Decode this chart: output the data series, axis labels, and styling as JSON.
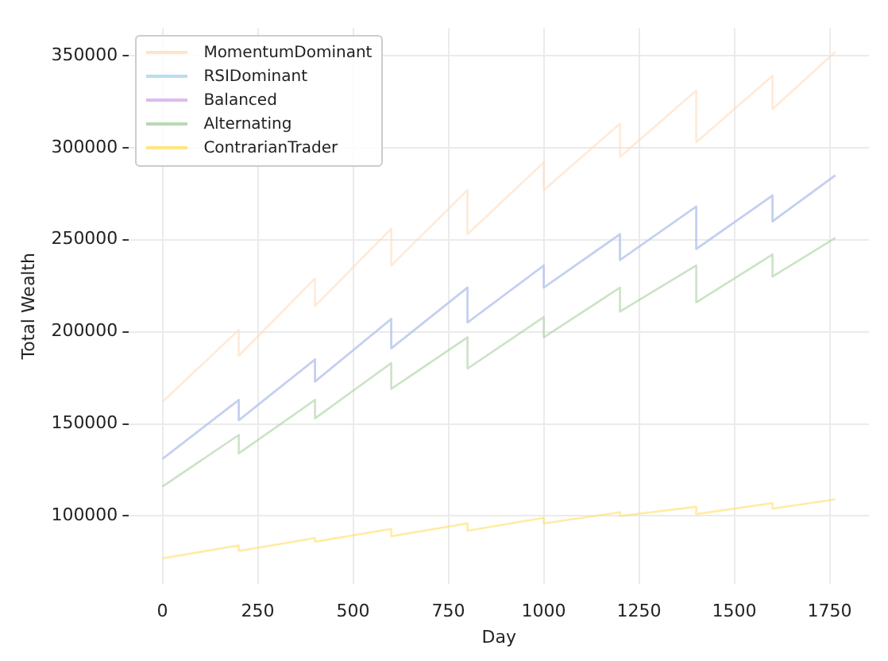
{
  "chart_data": {
    "type": "line",
    "xlabel": "Day",
    "ylabel": "Total Wealth",
    "xlim": [
      -88,
      1853
    ],
    "ylim": [
      63000,
      365000
    ],
    "xticks": [
      0,
      250,
      500,
      750,
      1000,
      1250,
      1500,
      1750
    ],
    "yticks": [
      100000,
      150000,
      200000,
      250000,
      300000,
      350000
    ],
    "grid": true,
    "legend": "top left",
    "marker": "none",
    "line_style": "solid",
    "x": [
      0,
      200,
      200,
      400,
      400,
      600,
      600,
      800,
      800,
      1000,
      1000,
      1200,
      1200,
      1400,
      1400,
      1600,
      1600,
      1765
    ],
    "series": [
      {
        "name": "MomentumDominant",
        "color": "#ffdcbc",
        "values": [
          162000,
          201000,
          187000,
          229000,
          214000,
          256000,
          236000,
          277000,
          253000,
          292000,
          277000,
          313000,
          295000,
          331000,
          303000,
          339000,
          321000,
          352000
        ]
      },
      {
        "name": "RSIDominant",
        "color": "#a8d4f0",
        "values": [
          131000,
          163000,
          152000,
          185000,
          173000,
          207000,
          191000,
          224000,
          205000,
          236000,
          224000,
          253000,
          239000,
          268000,
          245000,
          274000,
          260000,
          285000
        ]
      },
      {
        "name": "Balanced",
        "color": "#d8a8e8",
        "values": [
          131000,
          163000,
          152000,
          185000,
          173000,
          207000,
          191000,
          224000,
          205000,
          236000,
          224000,
          253000,
          239000,
          268000,
          245000,
          274000,
          260000,
          285000
        ]
      },
      {
        "name": "Alternating",
        "color": "#a8d0a0",
        "values": [
          116000,
          144000,
          134000,
          163000,
          153000,
          183000,
          169000,
          197000,
          180000,
          208000,
          197000,
          224000,
          211000,
          236000,
          216000,
          242000,
          230000,
          251000
        ]
      },
      {
        "name": "ContrarianTrader",
        "color": "#ffe066",
        "values": [
          77000,
          84000,
          81000,
          88000,
          86000,
          93000,
          89000,
          96000,
          92000,
          99000,
          96000,
          102000,
          100000,
          105000,
          101000,
          107000,
          104000,
          109000
        ]
      }
    ]
  }
}
